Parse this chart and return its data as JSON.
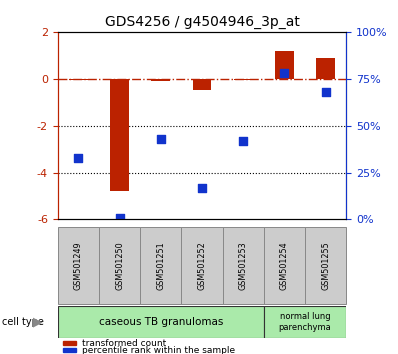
{
  "title": "GDS4256 / g4504946_3p_at",
  "samples": [
    "GSM501249",
    "GSM501250",
    "GSM501251",
    "GSM501252",
    "GSM501253",
    "GSM501254",
    "GSM501255"
  ],
  "red_values": [
    -0.05,
    -4.8,
    -0.08,
    -0.5,
    -0.05,
    1.2,
    0.9
  ],
  "blue_values_pct": [
    33,
    1,
    43,
    17,
    42,
    78,
    68
  ],
  "left_ylim": [
    -6,
    2
  ],
  "right_ylim": [
    0,
    100
  ],
  "left_yticks": [
    -6,
    -4,
    -2,
    0,
    2
  ],
  "right_yticks": [
    0,
    25,
    50,
    75,
    100
  ],
  "right_yticklabels": [
    "0%",
    "25%",
    "50%",
    "75%",
    "100%"
  ],
  "group1_label": "caseous TB granulomas",
  "group2_label": "normal lung\nparenchyma",
  "group1_color": "#aaeaaa",
  "group2_color": "#aaeaaa",
  "cell_type_label": "cell type",
  "legend1_label": "transformed count",
  "legend2_label": "percentile rank within the sample",
  "red_color": "#bb2200",
  "blue_color": "#1133cc",
  "bar_width": 0.45,
  "dotted_lines": [
    -2,
    -4
  ],
  "box_color": "#cccccc",
  "background_color": "#ffffff"
}
